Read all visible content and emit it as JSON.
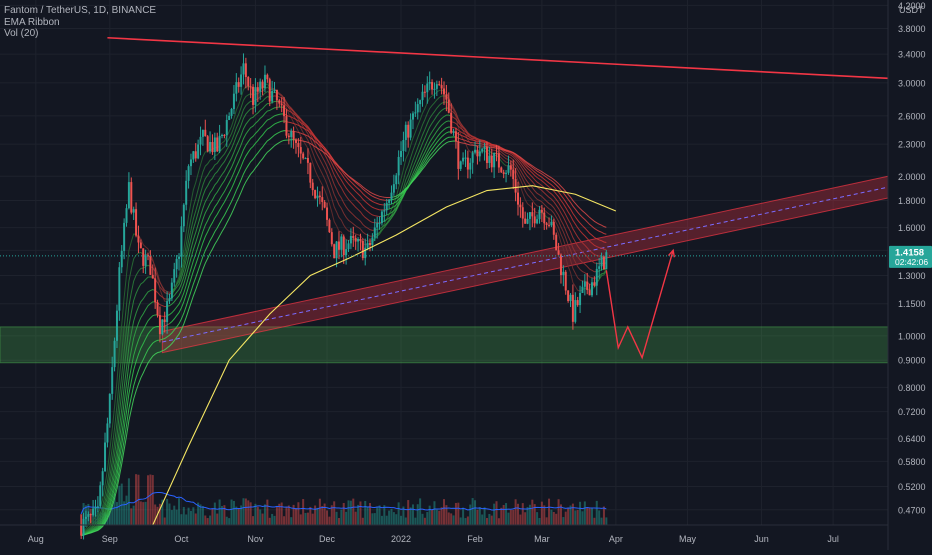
{
  "chart_data": {
    "type": "candlestick",
    "title": "Fantom / TetherUS, 1D, BINANCE",
    "indicators": [
      "EMA Ribbon",
      "Vol (20)"
    ],
    "currency_label": "USDT",
    "price_scale": "log",
    "ylim": [
      0.44,
      4.3
    ],
    "y_ticks": [
      "4.2000",
      "3.8000",
      "3.4000",
      "3.0000",
      "2.6000",
      "2.3000",
      "2.0000",
      "1.8000",
      "1.6000",
      "1.4500",
      "1.3000",
      "1.1500",
      "1.0000",
      "0.9000",
      "0.8000",
      "0.7200",
      "0.6400",
      "0.5800",
      "0.5200",
      "0.4700"
    ],
    "x_ticks": [
      "Aug",
      "Sep",
      "Oct",
      "Nov",
      "Dec",
      "2022",
      "Feb",
      "Mar",
      "Apr",
      "May",
      "Jun",
      "Jul"
    ],
    "x_range": [
      "2021-07-17",
      "2022-07-24"
    ],
    "last_price": {
      "value": 1.4158,
      "label": "1.4158",
      "countdown": "02:42:06"
    },
    "price_path": [
      [
        "2021-08-20",
        0.44
      ],
      [
        "2021-08-27",
        0.46
      ],
      [
        "2021-09-01",
        0.75
      ],
      [
        "2021-09-05",
        1.3
      ],
      [
        "2021-09-09",
        1.9
      ],
      [
        "2021-09-13",
        1.45
      ],
      [
        "2021-09-18",
        1.35
      ],
      [
        "2021-09-22",
        1.05
      ],
      [
        "2021-09-26",
        1.15
      ],
      [
        "2021-09-30",
        1.45
      ],
      [
        "2021-10-04",
        2.1
      ],
      [
        "2021-10-10",
        2.35
      ],
      [
        "2021-10-16",
        2.25
      ],
      [
        "2021-10-22",
        2.7
      ],
      [
        "2021-10-27",
        3.2
      ],
      [
        "2021-10-31",
        2.8
      ],
      [
        "2021-11-05",
        3.0
      ],
      [
        "2021-11-10",
        2.75
      ],
      [
        "2021-11-18",
        2.25
      ],
      [
        "2021-11-24",
        2.0
      ],
      [
        "2021-11-30",
        1.7
      ],
      [
        "2021-12-04",
        1.45
      ],
      [
        "2021-12-10",
        1.5
      ],
      [
        "2021-12-18",
        1.45
      ],
      [
        "2021-12-26",
        1.8
      ],
      [
        "2022-01-03",
        2.4
      ],
      [
        "2022-01-10",
        2.8
      ],
      [
        "2022-01-16",
        3.1
      ],
      [
        "2022-01-20",
        2.8
      ],
      [
        "2022-01-26",
        2.05
      ],
      [
        "2022-02-02",
        2.25
      ],
      [
        "2022-02-09",
        2.15
      ],
      [
        "2022-02-16",
        2.05
      ],
      [
        "2022-02-22",
        1.6
      ],
      [
        "2022-02-28",
        1.75
      ],
      [
        "2022-03-04",
        1.65
      ],
      [
        "2022-03-10",
        1.3
      ],
      [
        "2022-03-14",
        1.1
      ],
      [
        "2022-03-18",
        1.2
      ],
      [
        "2022-03-23",
        1.28
      ],
      [
        "2022-03-28",
        1.4158
      ]
    ],
    "ema_long_path": [
      [
        "2021-09-19",
        0.44
      ],
      [
        "2021-10-04",
        0.62
      ],
      [
        "2021-10-21",
        0.9
      ],
      [
        "2021-11-07",
        1.1
      ],
      [
        "2021-11-24",
        1.3
      ],
      [
        "2021-12-10",
        1.4
      ],
      [
        "2021-12-30",
        1.55
      ],
      [
        "2022-01-20",
        1.75
      ],
      [
        "2022-02-06",
        1.88
      ],
      [
        "2022-02-25",
        1.92
      ],
      [
        "2022-03-15",
        1.85
      ],
      [
        "2022-04-01",
        1.72
      ]
    ],
    "resistance_line": {
      "from": [
        "2021-08-31",
        3.65
      ],
      "to": [
        "2022-07-24",
        3.06
      ],
      "color": "#f23645"
    },
    "rising_channel": {
      "from_low": [
        "2021-09-23",
        0.93
      ],
      "from_high": [
        "2021-09-23",
        1.02
      ],
      "to_low": [
        "2022-07-24",
        1.82
      ],
      "to_high": [
        "2022-07-24",
        2.0
      ],
      "color": "#f23645"
    },
    "support_zone": {
      "low": 0.89,
      "high": 1.04,
      "color": "#4caf50"
    },
    "projection_path": [
      [
        "2022-03-28",
        1.33
      ],
      [
        "2022-04-02",
        0.95
      ],
      [
        "2022-04-06",
        1.04
      ],
      [
        "2022-04-12",
        0.91
      ],
      [
        "2022-04-25",
        1.45
      ]
    ],
    "colors": {
      "up": "#26a69a",
      "down": "#ef5350",
      "volume_ma": "#2962ff",
      "ema_long": "#f5e663",
      "axis_text": "#b2b5be",
      "background": "#131722",
      "last_price_badge": "#26a69a"
    }
  }
}
